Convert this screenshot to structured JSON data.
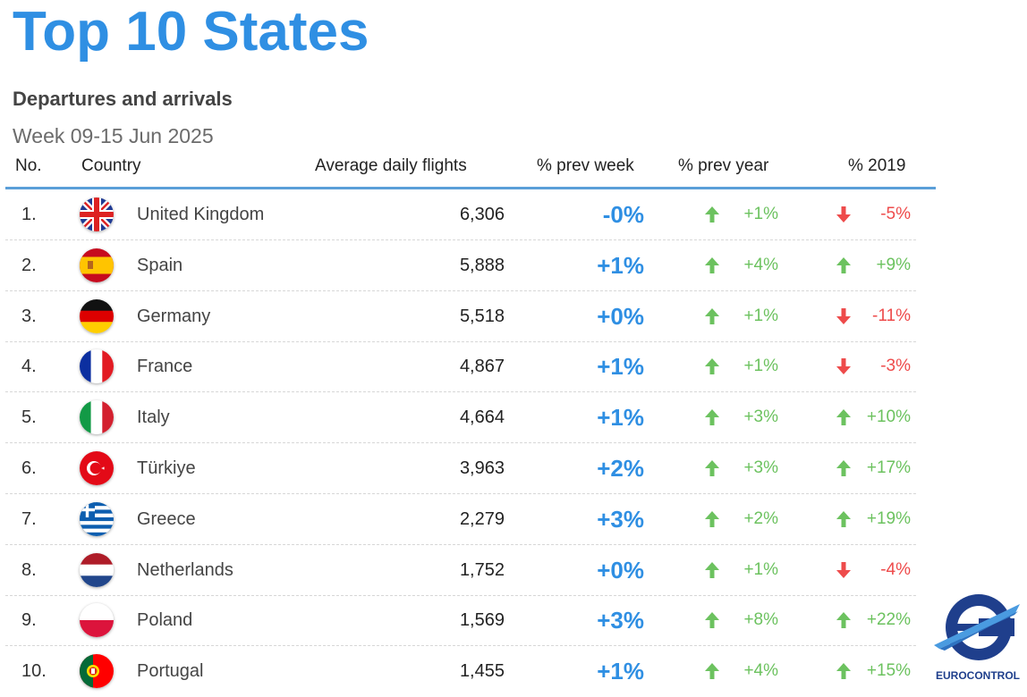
{
  "title": "Top 10 States",
  "subtitle": "Departures and arrivals",
  "period": "Week 09-15 Jun 2025",
  "headers": {
    "no": "No.",
    "country": "Country",
    "flights": "Average daily flights",
    "prev_week": "% prev week",
    "prev_year": "% prev year",
    "y2019": "% 2019"
  },
  "colors": {
    "accent": "#2f8fe3",
    "up": "#6cc25f",
    "down": "#ee4b4b",
    "rule": "#5a9fd8"
  },
  "rows": [
    {
      "no": "1.",
      "country": "United Kingdom",
      "flag": "uk-flag-icon",
      "flights": "6,306",
      "prev_week": "-0%",
      "prev_year": "+1%",
      "prev_year_dir": "up",
      "y2019": "-5%",
      "y2019_dir": "down"
    },
    {
      "no": "2.",
      "country": "Spain",
      "flag": "spain-flag-icon",
      "flights": "5,888",
      "prev_week": "+1%",
      "prev_year": "+4%",
      "prev_year_dir": "up",
      "y2019": "+9%",
      "y2019_dir": "up"
    },
    {
      "no": "3.",
      "country": "Germany",
      "flag": "germany-flag-icon",
      "flights": "5,518",
      "prev_week": "+0%",
      "prev_year": "+1%",
      "prev_year_dir": "up",
      "y2019": "-11%",
      "y2019_dir": "down"
    },
    {
      "no": "4.",
      "country": "France",
      "flag": "france-flag-icon",
      "flights": "4,867",
      "prev_week": "+1%",
      "prev_year": "+1%",
      "prev_year_dir": "up",
      "y2019": "-3%",
      "y2019_dir": "down"
    },
    {
      "no": "5.",
      "country": "Italy",
      "flag": "italy-flag-icon",
      "flights": "4,664",
      "prev_week": "+1%",
      "prev_year": "+3%",
      "prev_year_dir": "up",
      "y2019": "+10%",
      "y2019_dir": "up"
    },
    {
      "no": "6.",
      "country": "Türkiye",
      "flag": "turkiye-flag-icon",
      "flights": "3,963",
      "prev_week": "+2%",
      "prev_year": "+3%",
      "prev_year_dir": "up",
      "y2019": "+17%",
      "y2019_dir": "up"
    },
    {
      "no": "7.",
      "country": "Greece",
      "flag": "greece-flag-icon",
      "flights": "2,279",
      "prev_week": "+3%",
      "prev_year": "+2%",
      "prev_year_dir": "up",
      "y2019": "+19%",
      "y2019_dir": "up"
    },
    {
      "no": "8.",
      "country": "Netherlands",
      "flag": "netherlands-flag-icon",
      "flights": "1,752",
      "prev_week": "+0%",
      "prev_year": "+1%",
      "prev_year_dir": "up",
      "y2019": "-4%",
      "y2019_dir": "down"
    },
    {
      "no": "9.",
      "country": "Poland",
      "flag": "poland-flag-icon",
      "flights": "1,569",
      "prev_week": "+3%",
      "prev_year": "+8%",
      "prev_year_dir": "up",
      "y2019": "+22%",
      "y2019_dir": "up"
    },
    {
      "no": "10.",
      "country": "Portugal",
      "flag": "portugal-flag-icon",
      "flights": "1,455",
      "prev_week": "+1%",
      "prev_year": "+4%",
      "prev_year_dir": "up",
      "y2019": "+15%",
      "y2019_dir": "up"
    }
  ],
  "logo": {
    "icon": "eurocontrol-logo-icon",
    "text": "EUROCONTROL"
  }
}
